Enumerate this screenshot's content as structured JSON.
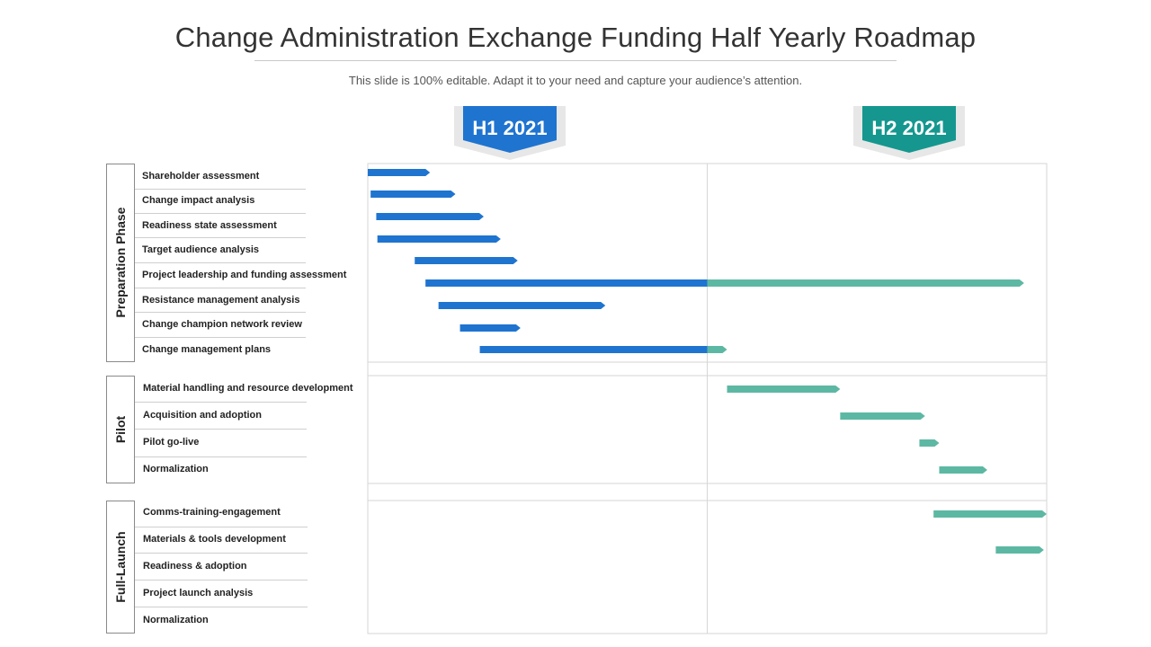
{
  "title": "Change Administration Exchange Funding Half Yearly Roadmap",
  "subtitle": "This slide is 100% editable. Adapt it to your need and capture your audience’s attention.",
  "colors": {
    "h1": "#1f74d0",
    "h2": "#5db8a3",
    "h1_badge": "#1f74d0",
    "h2_badge": "#15978f",
    "grid": "#d6d6d6"
  },
  "chart_data": {
    "type": "gantt",
    "periods": [
      {
        "label": "H1 2021",
        "color": "#1f74d0"
      },
      {
        "label": "H2 2021",
        "color": "#15978f"
      }
    ],
    "time_range": [
      0,
      12
    ],
    "groups": [
      {
        "name": "Preparation Phase",
        "tasks": [
          {
            "label": "Shareholder assessment",
            "start": 0.0,
            "end": 1.1
          },
          {
            "label": "Change impact analysis",
            "start": 0.05,
            "end": 1.55
          },
          {
            "label": "Readiness state assessment",
            "start": 0.15,
            "end": 2.05
          },
          {
            "label": "Target audience analysis",
            "start": 0.17,
            "end": 2.35
          },
          {
            "label": "Project leadership and funding assessment",
            "start": 0.83,
            "end": 2.65
          },
          {
            "label": "Resistance management analysis",
            "start": 1.02,
            "end": 11.6
          },
          {
            "label": "Change champion network review",
            "start": 1.25,
            "end": 4.2
          },
          {
            "label": "Change management plans",
            "start": 1.63,
            "end": 2.7
          },
          {
            "label": "",
            "start": 1.98,
            "end": 6.35
          }
        ]
      },
      {
        "name": "Pilot",
        "tasks": [
          {
            "label": "Material handling and resource development",
            "start": 6.35,
            "end": 8.35
          },
          {
            "label": "Acquisition and adoption",
            "start": 8.35,
            "end": 9.85
          },
          {
            "label": "Pilot go-live",
            "start": 9.75,
            "end": 10.1
          },
          {
            "label": "Normalization",
            "start": 10.1,
            "end": 10.95
          }
        ]
      },
      {
        "name": "Full-Launch",
        "tasks": [
          {
            "label": "Comms-training-engagement",
            "start": 10.0,
            "end": 12.0
          },
          {
            "label": "Materials & tools development",
            "start": 11.1,
            "end": 11.95
          },
          {
            "label": "Readiness & adoption",
            "start": null,
            "end": null
          },
          {
            "label": "Project launch analysis",
            "start": null,
            "end": null
          },
          {
            "label": "Normalization",
            "start": null,
            "end": null
          }
        ]
      }
    ]
  }
}
